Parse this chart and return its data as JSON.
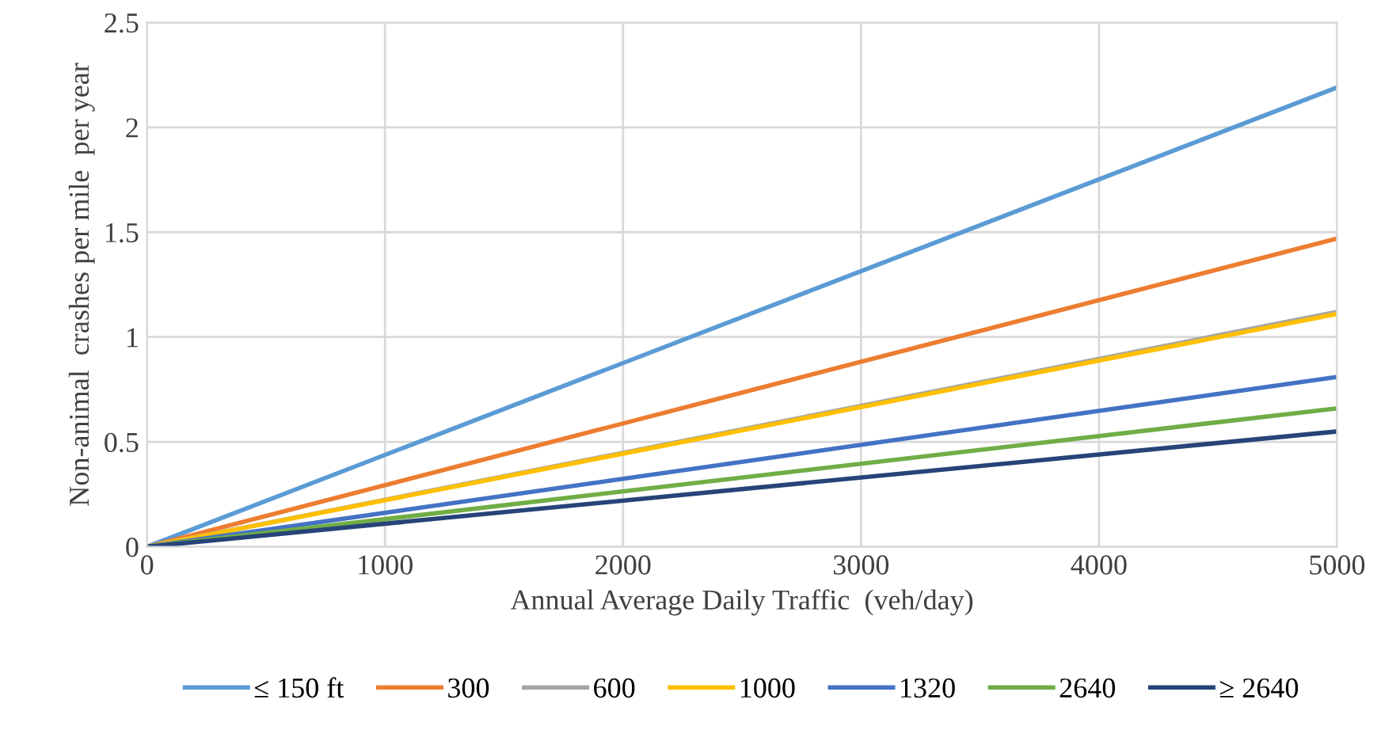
{
  "chart_data": {
    "type": "line",
    "xlabel": "Annual Average Daily Traffic  (veh/day)",
    "ylabel": "Non-animal  crashes per mile  per year",
    "x": [
      0,
      5000
    ],
    "series": [
      {
        "name": "≤ 150 ft",
        "color": "#5b9bd5",
        "values": [
          0,
          2.19
        ]
      },
      {
        "name": "300",
        "color": "#ed7d31",
        "values": [
          0,
          1.47
        ]
      },
      {
        "name": "600",
        "color": "#a5a5a5",
        "values": [
          0,
          1.12
        ]
      },
      {
        "name": "1000",
        "color": "#ffc000",
        "values": [
          0,
          1.11
        ]
      },
      {
        "name": "1320",
        "color": "#4472c4",
        "values": [
          0,
          0.81
        ]
      },
      {
        "name": "2640",
        "color": "#70ad47",
        "values": [
          0,
          0.66
        ]
      },
      {
        "name": "≥ 2640",
        "color": "#264478",
        "values": [
          0,
          0.55
        ]
      }
    ],
    "xlim": [
      0,
      5000
    ],
    "xticks": [
      0,
      1000,
      2000,
      3000,
      4000,
      5000
    ],
    "ylim": [
      0,
      2.5
    ],
    "yticks": [
      0,
      0.5,
      1,
      1.5,
      2,
      2.5
    ],
    "grid": true,
    "legend": "bottom",
    "marker": "none",
    "line_style": "solid"
  }
}
